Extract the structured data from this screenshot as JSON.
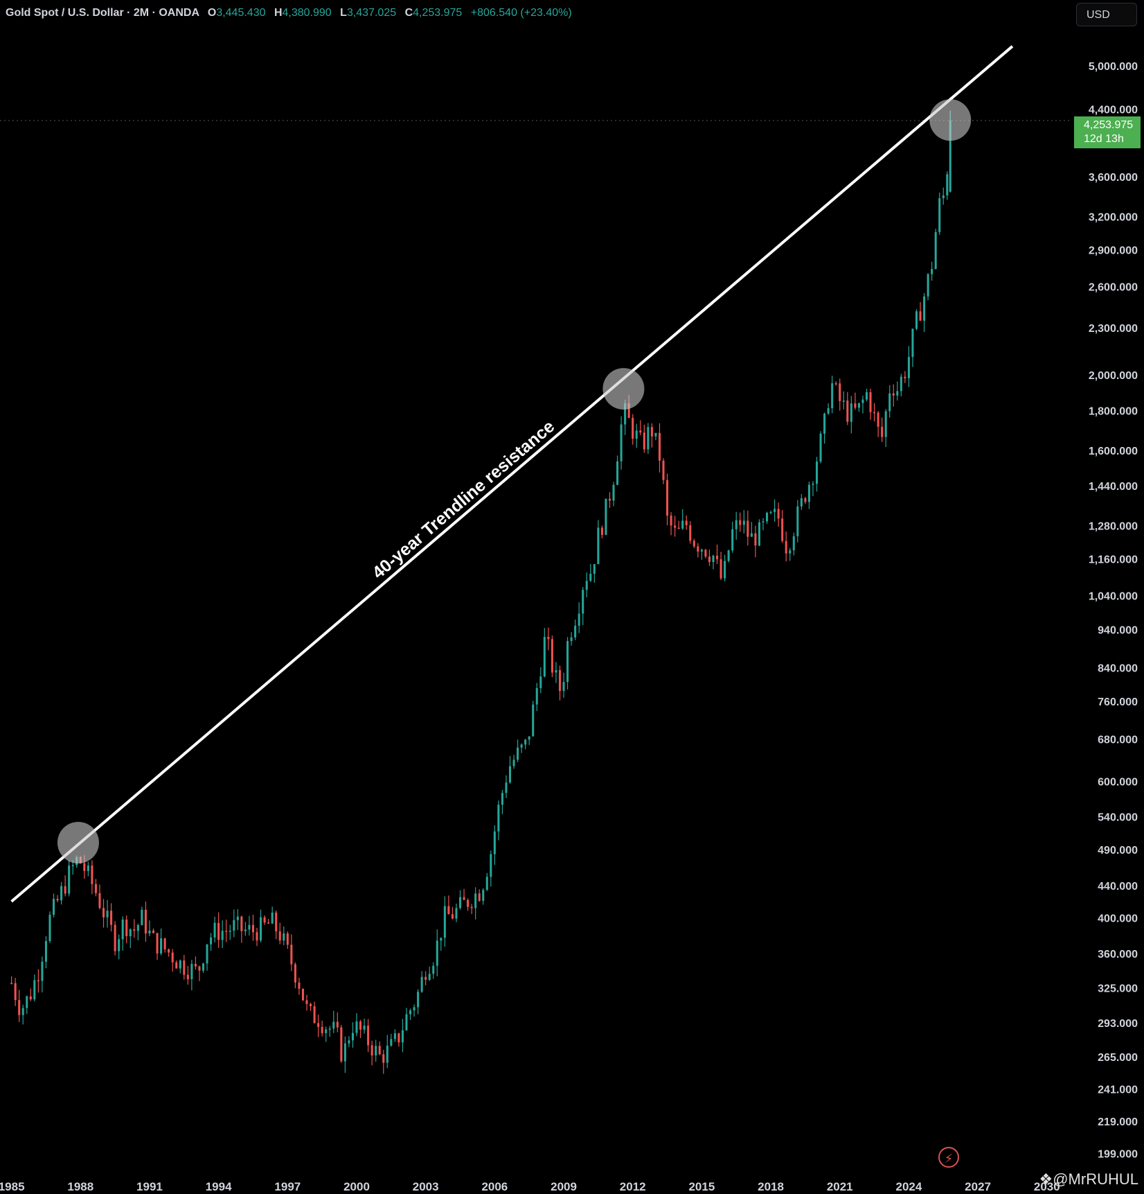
{
  "header": {
    "symbol": "Gold Spot / U.S. Dollar · 2M · OANDA",
    "open_label": "O",
    "open": "3,445.430",
    "high_label": "H",
    "high": "4,380.990",
    "low_label": "L",
    "low": "3,437.025",
    "close_label": "C",
    "close": "4,253.975",
    "change": "+806.540 (+23.40%)"
  },
  "currency_button": "USD",
  "price_label": {
    "price": "4,253.975",
    "countdown": "12d 13h"
  },
  "watermark": "@MrRUHUL",
  "colors": {
    "background": "#000000",
    "up": "#26a69a",
    "down": "#ef5350",
    "price_tag": "#4caf50",
    "trendline": "#ffffff"
  },
  "chart_data": {
    "type": "candlestick",
    "scale": "log",
    "annotation": "40-year Trendline resistance",
    "y_ticks": [
      199,
      219,
      241,
      265,
      293,
      325,
      360,
      400,
      440,
      490,
      540,
      600,
      680,
      760,
      840,
      940,
      1040,
      1160,
      1280,
      1440,
      1600,
      1800,
      2000,
      2300,
      2600,
      2900,
      3200,
      3600,
      4400,
      5000
    ],
    "y_tick_labels": [
      "199.000",
      "219.000",
      "241.000",
      "265.000",
      "293.000",
      "325.000",
      "360.000",
      "400.000",
      "440.000",
      "490.000",
      "540.000",
      "600.000",
      "680.000",
      "760.000",
      "840.000",
      "940.000",
      "1,040.000",
      "1,160.000",
      "1,280.000",
      "1,440.000",
      "1,600.000",
      "1,800.000",
      "2,000.000",
      "2,300.000",
      "2,600.000",
      "2,900.000",
      "3,200.000",
      "3,600.000",
      "4,400.000",
      "5,000.000"
    ],
    "x_ticks": [
      1985,
      1988,
      1991,
      1994,
      1997,
      2000,
      2003,
      2006,
      2009,
      2012,
      2015,
      2018,
      2021,
      2024,
      2027,
      2030
    ],
    "trendline": {
      "from": [
        1985.0,
        420
      ],
      "to": [
        2028.5,
        5300
      ]
    },
    "highlight_points": [
      [
        1987.9,
        500
      ],
      [
        2011.6,
        1920
      ],
      [
        2025.8,
        4260
      ]
    ],
    "close_path": [
      [
        1985.0,
        330
      ],
      [
        1985.4,
        305
      ],
      [
        1985.8,
        318
      ],
      [
        1986.2,
        345
      ],
      [
        1986.6,
        395
      ],
      [
        1987.0,
        420
      ],
      [
        1987.5,
        455
      ],
      [
        1987.9,
        478
      ],
      [
        1988.3,
        455
      ],
      [
        1988.7,
        430
      ],
      [
        1989.1,
        400
      ],
      [
        1989.5,
        375
      ],
      [
        1989.9,
        395
      ],
      [
        1990.3,
        385
      ],
      [
        1990.7,
        400
      ],
      [
        1991.1,
        375
      ],
      [
        1991.5,
        368
      ],
      [
        1991.9,
        360
      ],
      [
        1992.3,
        350
      ],
      [
        1992.7,
        345
      ],
      [
        1993.1,
        340
      ],
      [
        1993.5,
        375
      ],
      [
        1993.9,
        385
      ],
      [
        1994.3,
        385
      ],
      [
        1994.7,
        390
      ],
      [
        1995.1,
        385
      ],
      [
        1995.5,
        385
      ],
      [
        1995.9,
        388
      ],
      [
        1996.3,
        395
      ],
      [
        1996.7,
        380
      ],
      [
        1997.1,
        355
      ],
      [
        1997.5,
        330
      ],
      [
        1997.9,
        300
      ],
      [
        1998.3,
        298
      ],
      [
        1998.7,
        290
      ],
      [
        1999.1,
        285
      ],
      [
        1999.4,
        265
      ],
      [
        1999.8,
        292
      ],
      [
        2000.2,
        285
      ],
      [
        2000.6,
        275
      ],
      [
        2001.0,
        265
      ],
      [
        2001.4,
        270
      ],
      [
        2001.8,
        280
      ],
      [
        2002.2,
        300
      ],
      [
        2002.6,
        315
      ],
      [
        2003.0,
        345
      ],
      [
        2003.4,
        360
      ],
      [
        2003.8,
        400
      ],
      [
        2004.2,
        405
      ],
      [
        2004.6,
        415
      ],
      [
        2005.0,
        425
      ],
      [
        2005.4,
        435
      ],
      [
        2005.8,
        480
      ],
      [
        2006.2,
        560
      ],
      [
        2006.6,
        625
      ],
      [
        2007.0,
        650
      ],
      [
        2007.4,
        670
      ],
      [
        2007.8,
        780
      ],
      [
        2008.2,
        920
      ],
      [
        2008.6,
        820
      ],
      [
        2008.9,
        780
      ],
      [
        2009.2,
        920
      ],
      [
        2009.6,
        1000
      ],
      [
        2009.9,
        1100
      ],
      [
        2010.2,
        1120
      ],
      [
        2010.5,
        1240
      ],
      [
        2010.9,
        1360
      ],
      [
        2011.2,
        1500
      ],
      [
        2011.6,
        1800
      ],
      [
        2012.0,
        1700
      ],
      [
        2012.4,
        1620
      ],
      [
        2012.8,
        1710
      ],
      [
        2013.2,
        1560
      ],
      [
        2013.5,
        1300
      ],
      [
        2013.9,
        1240
      ],
      [
        2014.3,
        1290
      ],
      [
        2014.7,
        1220
      ],
      [
        2015.1,
        1200
      ],
      [
        2015.5,
        1170
      ],
      [
        2015.9,
        1080
      ],
      [
        2016.3,
        1250
      ],
      [
        2016.7,
        1300
      ],
      [
        2017.1,
        1230
      ],
      [
        2017.5,
        1250
      ],
      [
        2017.9,
        1300
      ],
      [
        2018.3,
        1320
      ],
      [
        2018.7,
        1200
      ],
      [
        2019.1,
        1300
      ],
      [
        2019.5,
        1410
      ],
      [
        2019.9,
        1520
      ],
      [
        2020.3,
        1700
      ],
      [
        2020.6,
        1960
      ],
      [
        2021.0,
        1850
      ],
      [
        2021.4,
        1780
      ],
      [
        2021.8,
        1800
      ],
      [
        2022.2,
        1900
      ],
      [
        2022.6,
        1720
      ],
      [
        2022.8,
        1640
      ],
      [
        2023.2,
        1950
      ],
      [
        2023.5,
        1920
      ],
      [
        2023.9,
        2050
      ],
      [
        2024.3,
        2320
      ],
      [
        2024.7,
        2550
      ],
      [
        2025.0,
        2780
      ],
      [
        2025.3,
        3300
      ],
      [
        2025.6,
        3445
      ],
      [
        2025.8,
        4254
      ]
    ]
  }
}
